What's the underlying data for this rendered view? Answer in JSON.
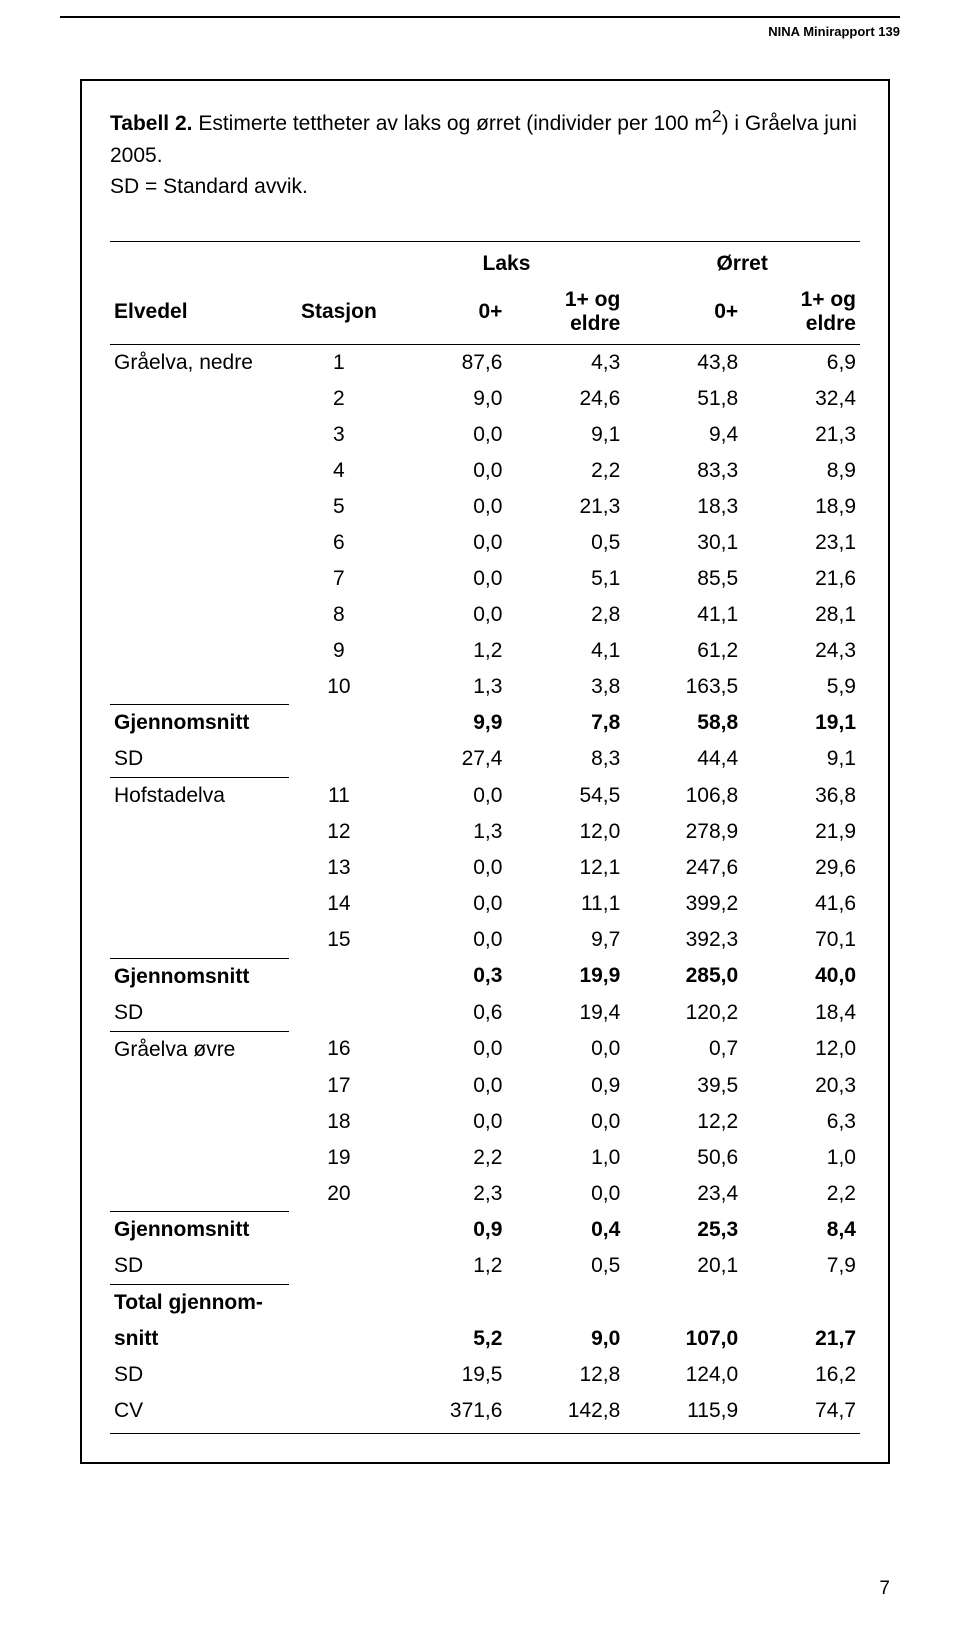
{
  "header": {
    "report": "NINA Minirapport 139"
  },
  "caption": {
    "lead": "Tabell 2.",
    "text_a": " Estimerte tettheter av laks og ørret (individer per 100 m",
    "sup": "2",
    "text_b": ") i Gråelva juni 2005.",
    "line2": "SD = Standard avvik."
  },
  "columns": {
    "elvedel": "Elvedel",
    "stasjon": "Stasjon",
    "laks": "Laks",
    "orret": "Ørret",
    "c1": "0+",
    "c2": "1+ og eldre",
    "c3": "0+",
    "c4": "1+ og eldre"
  },
  "sections": [
    {
      "name": "Gråelva, nedre",
      "rows": [
        {
          "stn": "1",
          "v": [
            "87,6",
            "4,3",
            "43,8",
            "6,9"
          ]
        },
        {
          "stn": "2",
          "v": [
            "9,0",
            "24,6",
            "51,8",
            "32,4"
          ]
        },
        {
          "stn": "3",
          "v": [
            "0,0",
            "9,1",
            "9,4",
            "21,3"
          ]
        },
        {
          "stn": "4",
          "v": [
            "0,0",
            "2,2",
            "83,3",
            "8,9"
          ]
        },
        {
          "stn": "5",
          "v": [
            "0,0",
            "21,3",
            "18,3",
            "18,9"
          ]
        },
        {
          "stn": "6",
          "v": [
            "0,0",
            "0,5",
            "30,1",
            "23,1"
          ]
        },
        {
          "stn": "7",
          "v": [
            "0,0",
            "5,1",
            "85,5",
            "21,6"
          ]
        },
        {
          "stn": "8",
          "v": [
            "0,0",
            "2,8",
            "41,1",
            "28,1"
          ]
        },
        {
          "stn": "9",
          "v": [
            "1,2",
            "4,1",
            "61,2",
            "24,3"
          ]
        },
        {
          "stn": "10",
          "v": [
            "1,3",
            "3,8",
            "163,5",
            "5,9"
          ]
        }
      ],
      "mean": {
        "label": "Gjennomsnitt",
        "v": [
          "9,9",
          "7,8",
          "58,8",
          "19,1"
        ]
      },
      "sd": {
        "label": "SD",
        "v": [
          "27,4",
          "8,3",
          "44,4",
          "9,1"
        ]
      }
    },
    {
      "name": "Hofstadelva",
      "rows": [
        {
          "stn": "11",
          "v": [
            "0,0",
            "54,5",
            "106,8",
            "36,8"
          ]
        },
        {
          "stn": "12",
          "v": [
            "1,3",
            "12,0",
            "278,9",
            "21,9"
          ]
        },
        {
          "stn": "13",
          "v": [
            "0,0",
            "12,1",
            "247,6",
            "29,6"
          ]
        },
        {
          "stn": "14",
          "v": [
            "0,0",
            "11,1",
            "399,2",
            "41,6"
          ]
        },
        {
          "stn": "15",
          "v": [
            "0,0",
            "9,7",
            "392,3",
            "70,1"
          ]
        }
      ],
      "mean": {
        "label": "Gjennomsnitt",
        "v": [
          "0,3",
          "19,9",
          "285,0",
          "40,0"
        ]
      },
      "sd": {
        "label": "SD",
        "v": [
          "0,6",
          "19,4",
          "120,2",
          "18,4"
        ]
      }
    },
    {
      "name": "Gråelva øvre",
      "rows": [
        {
          "stn": "16",
          "v": [
            "0,0",
            "0,0",
            "0,7",
            "12,0"
          ]
        },
        {
          "stn": "17",
          "v": [
            "0,0",
            "0,9",
            "39,5",
            "20,3"
          ]
        },
        {
          "stn": "18",
          "v": [
            "0,0",
            "0,0",
            "12,2",
            "6,3"
          ]
        },
        {
          "stn": "19",
          "v": [
            "2,2",
            "1,0",
            "50,6",
            "1,0"
          ]
        },
        {
          "stn": "20",
          "v": [
            "2,3",
            "0,0",
            "23,4",
            "2,2"
          ]
        }
      ],
      "mean": {
        "label": "Gjennomsnitt",
        "v": [
          "0,9",
          "0,4",
          "25,3",
          "8,4"
        ]
      },
      "sd": {
        "label": "SD",
        "v": [
          "1,2",
          "0,5",
          "20,1",
          "7,9"
        ]
      }
    }
  ],
  "totals": {
    "mean_label_a": "Total gjennom-",
    "mean_label_b": "snitt",
    "mean": [
      "5,2",
      "9,0",
      "107,0",
      "21,7"
    ],
    "sd_label": "SD",
    "sd": [
      "19,5",
      "12,8",
      "124,0",
      "16,2"
    ],
    "cv_label": "CV",
    "cv": [
      "371,6",
      "142,8",
      "115,9",
      "74,7"
    ]
  },
  "page_number": "7"
}
